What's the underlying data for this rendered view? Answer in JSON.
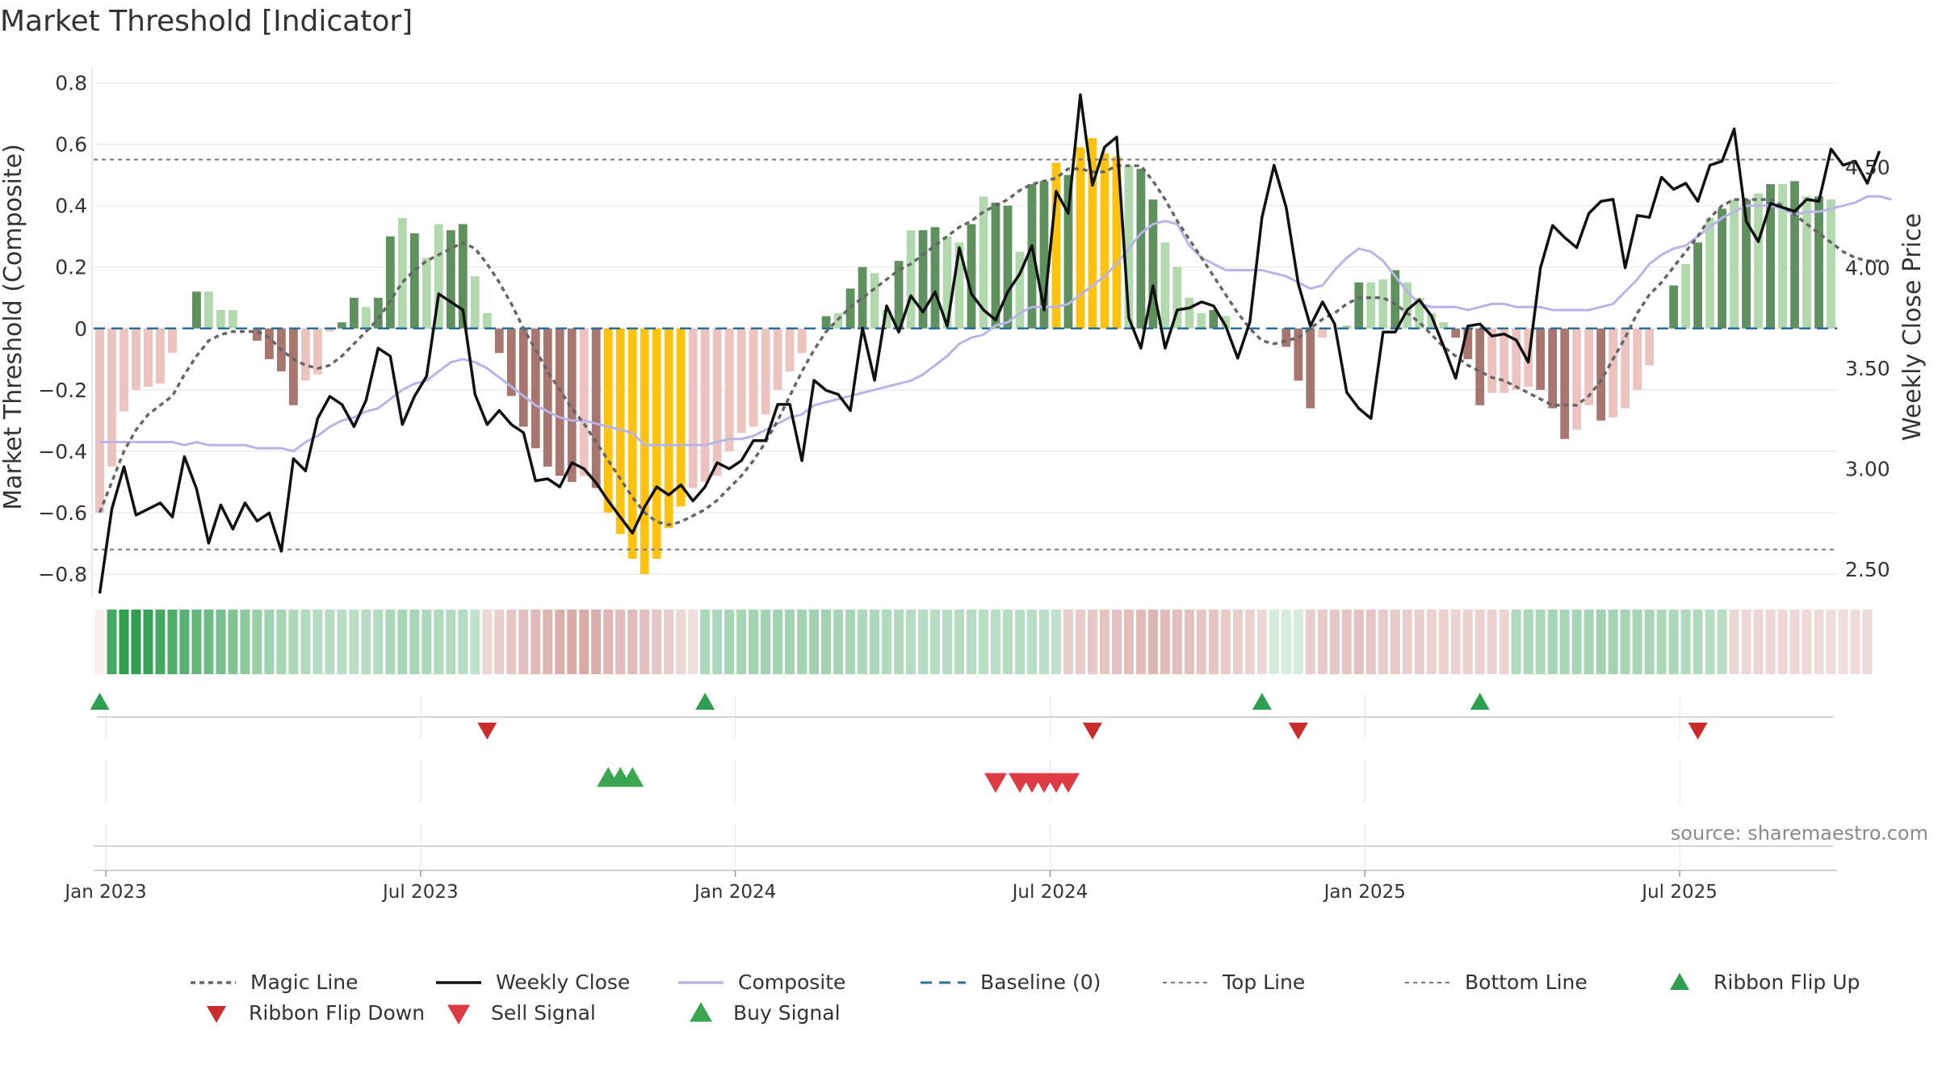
{
  "chart_data": {
    "type": "bar",
    "title": "Market Threshold [Indicator]",
    "ylabel": "Market Threshold (Composite)",
    "y2label": "Weekly Close Price",
    "ylim": [
      -0.85,
      0.82
    ],
    "y2lim": [
      2.4,
      4.95
    ],
    "y_ticks": [
      {
        "v": 0.8,
        "label": "0.8"
      },
      {
        "v": 0.6,
        "label": "0.6"
      },
      {
        "v": 0.4,
        "label": "0.4"
      },
      {
        "v": 0.2,
        "label": "0.2"
      },
      {
        "v": 0,
        "label": "0"
      },
      {
        "v": -0.2,
        "label": "−0.2"
      },
      {
        "v": -0.4,
        "label": "−0.4"
      },
      {
        "v": -0.6,
        "label": "−0.6"
      },
      {
        "v": -0.8,
        "label": "−0.8"
      }
    ],
    "y2_ticks": [
      {
        "v": 4.5,
        "label": "4.50"
      },
      {
        "v": 4.0,
        "label": "4.00"
      },
      {
        "v": 3.5,
        "label": "3.50"
      },
      {
        "v": 3.0,
        "label": "3.00"
      },
      {
        "v": 2.5,
        "label": "2.50"
      }
    ],
    "x_ticks": [
      {
        "w": 1,
        "label": "Jan 2023"
      },
      {
        "w": 27,
        "label": "Jul 2023"
      },
      {
        "w": 53,
        "label": "Jan 2024"
      },
      {
        "w": 79,
        "label": "Jul 2024"
      },
      {
        "w": 105,
        "label": "Jan 2025"
      },
      {
        "w": 131,
        "label": "Jul 2025"
      }
    ],
    "weeks": 144,
    "top_line": 0.55,
    "bottom_line": -0.72,
    "baseline": 0,
    "histogram": [
      -0.6,
      -0.45,
      -0.27,
      -0.2,
      -0.19,
      -0.18,
      -0.08,
      0,
      0.12,
      0.12,
      0.06,
      0.06,
      0,
      -0.04,
      -0.1,
      -0.14,
      -0.25,
      -0.17,
      -0.15,
      -0.01,
      0.02,
      0.1,
      0.07,
      0.1,
      0.3,
      0.36,
      0.31,
      0.23,
      0.34,
      0.32,
      0.34,
      0.17,
      0.05,
      -0.08,
      -0.22,
      -0.32,
      -0.39,
      -0.45,
      -0.48,
      -0.5,
      -0.48,
      -0.52,
      -0.6,
      -0.67,
      -0.75,
      -0.8,
      -0.75,
      -0.65,
      -0.58,
      -0.52,
      -0.5,
      -0.48,
      -0.4,
      -0.34,
      -0.32,
      -0.28,
      -0.2,
      -0.14,
      -0.08,
      0,
      0.04,
      0.05,
      0.13,
      0.2,
      0.18,
      0.06,
      0.22,
      0.32,
      0.32,
      0.33,
      0.3,
      0.28,
      0.34,
      0.43,
      0.41,
      0.4,
      0.25,
      0.47,
      0.48,
      0.54,
      0.5,
      0.59,
      0.62,
      0.57,
      0.56,
      0.53,
      0.52,
      0.42,
      0.28,
      0.2,
      0.1,
      0.05,
      0.06,
      0.04,
      0,
      0,
      0,
      0,
      -0.06,
      -0.17,
      -0.26,
      -0.03,
      0,
      0.01,
      0.15,
      0.15,
      0.16,
      0.19,
      0.15,
      0.1,
      0.05,
      0.02,
      -0.03,
      -0.1,
      -0.25,
      -0.21,
      -0.21,
      -0.2,
      -0.19,
      -0.2,
      -0.26,
      -0.36,
      -0.33,
      -0.25,
      -0.3,
      -0.29,
      -0.26,
      -0.2,
      -0.12,
      0,
      0.14,
      0.21,
      0.28,
      0.36,
      0.39,
      0.42,
      0.42,
      0.44,
      0.47,
      0.47,
      0.48,
      0.43,
      0.43,
      0.42
    ],
    "weekly_close": [
      2.38,
      2.8,
      3.01,
      2.77,
      2.8,
      2.83,
      2.76,
      3.06,
      2.9,
      2.63,
      2.82,
      2.7,
      2.83,
      2.74,
      2.78,
      2.59,
      3.05,
      2.99,
      3.25,
      3.36,
      3.32,
      3.21,
      3.34,
      3.6,
      3.56,
      3.22,
      3.36,
      3.46,
      3.87,
      3.83,
      3.79,
      3.37,
      3.22,
      3.29,
      3.22,
      3.18,
      2.94,
      2.95,
      2.91,
      3.03,
      3.0,
      2.93,
      2.84,
      2.76,
      2.68,
      2.81,
      2.91,
      2.87,
      2.92,
      2.84,
      2.91,
      3.03,
      3.0,
      3.04,
      3.14,
      3.14,
      3.32,
      3.32,
      3.04,
      3.44,
      3.39,
      3.37,
      3.29,
      3.7,
      3.44,
      3.81,
      3.68,
      3.86,
      3.78,
      3.88,
      3.71,
      4.1,
      3.87,
      3.79,
      3.74,
      3.88,
      3.97,
      4.11,
      3.79,
      4.38,
      4.27,
      4.86,
      4.41,
      4.6,
      4.65,
      3.75,
      3.6,
      3.91,
      3.6,
      3.79,
      3.8,
      3.83,
      3.81,
      3.71,
      3.55,
      3.73,
      4.25,
      4.51,
      4.3,
      3.92,
      3.71,
      3.83,
      3.72,
      3.38,
      3.3,
      3.25,
      3.68,
      3.68,
      3.79,
      3.84,
      3.76,
      3.61,
      3.45,
      3.71,
      3.72,
      3.66,
      3.67,
      3.64,
      3.53,
      4.0,
      4.21,
      4.15,
      4.1,
      4.27,
      4.33,
      4.34,
      4.0,
      4.26,
      4.25,
      4.45,
      4.39,
      4.42,
      4.33,
      4.51,
      4.53,
      4.69,
      4.23,
      4.13,
      4.32,
      4.3,
      4.28,
      4.34,
      4.33,
      4.59,
      4.51,
      4.53,
      4.42,
      4.58
    ],
    "composite": [
      -0.37,
      -0.37,
      -0.37,
      -0.37,
      -0.37,
      -0.37,
      -0.37,
      -0.38,
      -0.37,
      -0.38,
      -0.38,
      -0.38,
      -0.38,
      -0.39,
      -0.39,
      -0.39,
      -0.4,
      -0.37,
      -0.35,
      -0.32,
      -0.3,
      -0.29,
      -0.27,
      -0.26,
      -0.23,
      -0.2,
      -0.18,
      -0.17,
      -0.14,
      -0.11,
      -0.1,
      -0.11,
      -0.13,
      -0.16,
      -0.19,
      -0.22,
      -0.25,
      -0.27,
      -0.29,
      -0.3,
      -0.3,
      -0.31,
      -0.32,
      -0.33,
      -0.34,
      -0.38,
      -0.38,
      -0.38,
      -0.38,
      -0.38,
      -0.38,
      -0.37,
      -0.36,
      -0.36,
      -0.35,
      -0.33,
      -0.31,
      -0.29,
      -0.28,
      -0.25,
      -0.24,
      -0.23,
      -0.22,
      -0.21,
      -0.2,
      -0.19,
      -0.18,
      -0.17,
      -0.15,
      -0.12,
      -0.09,
      -0.05,
      -0.03,
      -0.02,
      0.01,
      0.02,
      0.05,
      0.07,
      0.07,
      0.07,
      0.08,
      0.11,
      0.14,
      0.17,
      0.21,
      0.26,
      0.31,
      0.34,
      0.35,
      0.34,
      0.27,
      0.23,
      0.21,
      0.19,
      0.19,
      0.19,
      0.19,
      0.18,
      0.17,
      0.15,
      0.13,
      0.14,
      0.19,
      0.23,
      0.26,
      0.25,
      0.22,
      0.17,
      0.12,
      0.08,
      0.07,
      0.07,
      0.07,
      0.06,
      0.07,
      0.08,
      0.08,
      0.07,
      0.07,
      0.07,
      0.06,
      0.06,
      0.06,
      0.06,
      0.07,
      0.08,
      0.12,
      0.16,
      0.21,
      0.24,
      0.26,
      0.27,
      0.3,
      0.33,
      0.36,
      0.38,
      0.4,
      0.4,
      0.4,
      0.39,
      0.37,
      0.38,
      0.38,
      0.39,
      0.4,
      0.41,
      0.43,
      0.43,
      0.42
    ],
    "magic_line": [
      -0.6,
      -0.5,
      -0.4,
      -0.33,
      -0.28,
      -0.25,
      -0.22,
      -0.15,
      -0.09,
      -0.04,
      -0.02,
      -0.01,
      -0.01,
      -0.01,
      -0.03,
      -0.07,
      -0.1,
      -0.12,
      -0.13,
      -0.12,
      -0.09,
      -0.05,
      -0.01,
      0.03,
      0.09,
      0.15,
      0.19,
      0.22,
      0.24,
      0.26,
      0.28,
      0.26,
      0.21,
      0.15,
      0.08,
      0.0,
      -0.07,
      -0.14,
      -0.2,
      -0.26,
      -0.31,
      -0.37,
      -0.43,
      -0.49,
      -0.55,
      -0.6,
      -0.63,
      -0.64,
      -0.63,
      -0.61,
      -0.59,
      -0.56,
      -0.52,
      -0.48,
      -0.43,
      -0.37,
      -0.3,
      -0.22,
      -0.14,
      -0.07,
      -0.01,
      0.03,
      0.07,
      0.1,
      0.13,
      0.16,
      0.19,
      0.21,
      0.24,
      0.27,
      0.3,
      0.33,
      0.35,
      0.38,
      0.4,
      0.42,
      0.45,
      0.47,
      0.48,
      0.49,
      0.52,
      0.52,
      0.51,
      0.51,
      0.53,
      0.53,
      0.53,
      0.48,
      0.42,
      0.35,
      0.29,
      0.23,
      0.17,
      0.11,
      0.05,
      0.0,
      -0.04,
      -0.05,
      -0.04,
      -0.03,
      0.0,
      0.03,
      0.05,
      0.08,
      0.1,
      0.1,
      0.1,
      0.08,
      0.05,
      0.02,
      -0.02,
      -0.06,
      -0.09,
      -0.12,
      -0.14,
      -0.16,
      -0.17,
      -0.19,
      -0.21,
      -0.23,
      -0.25,
      -0.25,
      -0.25,
      -0.22,
      -0.17,
      -0.1,
      -0.03,
      0.05,
      0.11,
      0.15,
      0.2,
      0.25,
      0.3,
      0.36,
      0.4,
      0.42,
      0.42,
      0.42,
      0.42,
      0.4,
      0.37,
      0.34,
      0.31,
      0.28,
      0.25,
      0.23,
      0.22,
      0.22
    ],
    "ribbon": [
      -0.1,
      0.9,
      1,
      1,
      0.95,
      0.9,
      0.85,
      0.8,
      0.75,
      0.7,
      0.65,
      0.6,
      0.55,
      0.5,
      0.45,
      0.42,
      0.4,
      0.38,
      0.36,
      0.35,
      0.34,
      0.34,
      0.35,
      0.36,
      0.4,
      0.42,
      0.42,
      0.4,
      0.38,
      0.37,
      0.35,
      0.3,
      -0.25,
      -0.3,
      -0.35,
      -0.4,
      -0.42,
      -0.45,
      -0.5,
      -0.52,
      -0.52,
      -0.5,
      -0.45,
      -0.42,
      -0.42,
      -0.4,
      -0.35,
      -0.3,
      -0.25,
      -0.2,
      0.4,
      0.4,
      0.42,
      0.43,
      0.45,
      0.45,
      0.45,
      0.44,
      0.45,
      0.45,
      0.45,
      0.43,
      0.42,
      0.4,
      0.4,
      0.38,
      0.38,
      0.36,
      0.36,
      0.35,
      0.35,
      0.35,
      0.35,
      0.34,
      0.34,
      0.35,
      0.35,
      0.34,
      0.33,
      0.3,
      -0.3,
      -0.32,
      -0.34,
      -0.36,
      -0.38,
      -0.4,
      -0.42,
      -0.45,
      -0.42,
      -0.4,
      -0.38,
      -0.36,
      -0.35,
      -0.33,
      -0.3,
      -0.28,
      -0.25,
      0.2,
      0.2,
      0.2,
      -0.3,
      -0.32,
      -0.34,
      -0.36,
      -0.38,
      -0.35,
      -0.33,
      -0.32,
      -0.3,
      -0.3,
      -0.28,
      -0.28,
      -0.27,
      -0.28,
      -0.28,
      -0.28,
      -0.27,
      0.38,
      0.4,
      0.4,
      0.42,
      0.42,
      0.43,
      0.43,
      0.44,
      0.44,
      0.43,
      0.42,
      0.42,
      0.4,
      0.4,
      0.38,
      0.38,
      0.36,
      0.34,
      -0.25,
      -0.25,
      -0.26,
      -0.25,
      -0.24,
      -0.24,
      -0.23,
      -0.23,
      -0.22,
      -0.22,
      -0.22,
      -0.22
    ],
    "ribbon_flip_up": [
      0,
      50,
      96,
      114
    ],
    "ribbon_flip_down": [
      32,
      82,
      99,
      132
    ],
    "buy_signals": [
      42,
      43,
      44
    ],
    "sell_signals": [
      74,
      76,
      77,
      78,
      79,
      80
    ],
    "source": "source: sharemaestro.com",
    "legend": [
      {
        "key": "magic",
        "label": "Magic Line"
      },
      {
        "key": "close",
        "label": "Weekly Close"
      },
      {
        "key": "composite",
        "label": "Composite"
      },
      {
        "key": "baseline",
        "label": "Baseline (0)"
      },
      {
        "key": "top",
        "label": "Top Line"
      },
      {
        "key": "bottom",
        "label": "Bottom Line"
      },
      {
        "key": "flipup",
        "label": "Ribbon Flip Up"
      },
      {
        "key": "flipdown",
        "label": "Ribbon Flip Down"
      },
      {
        "key": "sell",
        "label": "Sell Signal"
      },
      {
        "key": "buy",
        "label": "Buy Signal"
      }
    ],
    "colors": {
      "pos_strong": "#5f915f",
      "pos_weak": "#b2d9ae",
      "neg_strong": "#a8756f",
      "neg_weak": "#ecc3bf",
      "extreme": "#ffc20e",
      "close": "#111111",
      "composite": "#b8b4e6",
      "magic": "#666666",
      "baseline": "#2a6f97",
      "thresholds": "#777777",
      "flip_up": "#2e9e4f",
      "flip_down": "#cc2b2b",
      "buy": "#3aa64f",
      "sell": "#dd3a44"
    }
  }
}
